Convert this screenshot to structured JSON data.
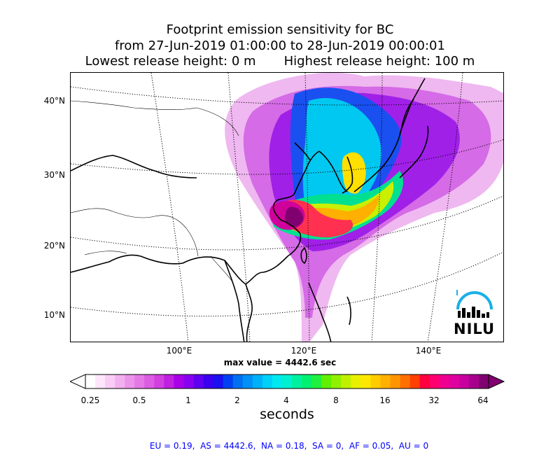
{
  "title": {
    "line1": "Footprint emission sensitivity for BC",
    "line2": "from 27-Jun-2019 01:00:00 to 28-Jun-2019 00:00:01",
    "line3": "Lowest release height: 0 m       Highest release height: 100 m"
  },
  "axes": {
    "lat_labels": [
      "40°N",
      "30°N",
      "20°N",
      "10°N"
    ],
    "lon_labels": [
      "100°E",
      "120°E",
      "140°E"
    ]
  },
  "max_value": "max value = 4442.6 sec",
  "colorbar": {
    "ticks": [
      "0.25",
      "0.5",
      "1",
      "2",
      "4",
      "8",
      "16",
      "32",
      "64"
    ],
    "unit": "seconds",
    "colors": [
      "#ffffff",
      "#fde6fb",
      "#f9ccf6",
      "#f2b0f0",
      "#eb94ea",
      "#e478e6",
      "#dc5ce3",
      "#d23fe0",
      "#c020e0",
      "#a800e8",
      "#8800f0",
      "#6000f0",
      "#3a00f0",
      "#1a10f0",
      "#0040f0",
      "#0070f0",
      "#0090f8",
      "#00b0f8",
      "#00d0f8",
      "#00e8f0",
      "#00f0d0",
      "#00f0a0",
      "#00f070",
      "#20f040",
      "#60f000",
      "#90f000",
      "#c0f000",
      "#e8f000",
      "#ffe800",
      "#ffcc00",
      "#ffb000",
      "#ff9400",
      "#ff7000",
      "#ff4000",
      "#ff0040",
      "#ff0070",
      "#f00090",
      "#e000a0",
      "#c800a0",
      "#a8008c",
      "#800070"
    ]
  },
  "logo": {
    "text": "NILU"
  },
  "regions_line": "EU = 0.19,  AS = 4442.6,  NA = 0.18,  SA = 0,  AF = 0.05,  AU = 0"
}
